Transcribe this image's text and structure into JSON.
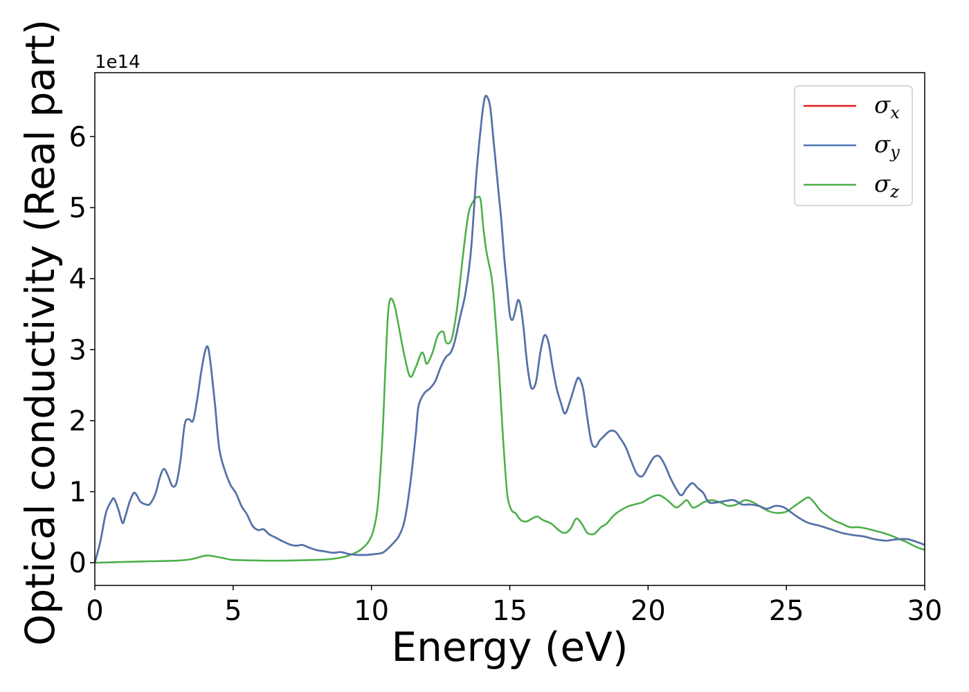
{
  "chart_data": {
    "type": "line",
    "xlabel": "Energy (eV)",
    "ylabel": "Optical conductivity (Real part)",
    "y_offset_text": "1e14",
    "xlim": [
      0,
      30
    ],
    "ylim": [
      -0.32,
      6.9
    ],
    "x_ticks": [
      0,
      5,
      10,
      15,
      20,
      25,
      30
    ],
    "y_ticks": [
      0,
      1,
      2,
      3,
      4,
      5,
      6
    ],
    "grid": false,
    "legend_position": "top-right",
    "series": [
      {
        "name": "σx",
        "base": "σ",
        "sub": "x",
        "color": "#e41a1c",
        "x": [
          0,
          0.2,
          0.4,
          0.6,
          0.7,
          0.85,
          1,
          1.1,
          1.25,
          1.4,
          1.5,
          1.65,
          1.85,
          2,
          2.2,
          2.35,
          2.5,
          2.65,
          2.8,
          2.95,
          3.1,
          3.25,
          3.4,
          3.55,
          3.7,
          3.85,
          4,
          4.1,
          4.2,
          4.35,
          4.5,
          4.7,
          4.9,
          5.1,
          5.3,
          5.5,
          5.7,
          5.9,
          6.1,
          6.3,
          6.5,
          6.8,
          7.1,
          7.3,
          7.5,
          7.7,
          8,
          8.3,
          8.6,
          8.9,
          9.2,
          9.5,
          9.8,
          10.1,
          10.4,
          10.6,
          10.8,
          11,
          11.2,
          11.4,
          11.6,
          11.7,
          11.9,
          12.1,
          12.3,
          12.5,
          12.7,
          12.85,
          13,
          13.2,
          13.4,
          13.6,
          13.8,
          14,
          14.1,
          14.2,
          14.3,
          14.4,
          14.5,
          14.6,
          14.7,
          14.8,
          14.9,
          15,
          15.1,
          15.2,
          15.3,
          15.4,
          15.5,
          15.6,
          15.7,
          15.8,
          15.95,
          16.1,
          16.25,
          16.4,
          16.55,
          16.7,
          16.85,
          17,
          17.2,
          17.4,
          17.5,
          17.65,
          17.8,
          17.95,
          18.1,
          18.25,
          18.4,
          18.6,
          18.8,
          19,
          19.2,
          19.4,
          19.6,
          19.8,
          20,
          20.2,
          20.4,
          20.6,
          20.8,
          21,
          21.2,
          21.4,
          21.6,
          21.8,
          22,
          22.2,
          22.5,
          22.8,
          23.1,
          23.4,
          23.7,
          24,
          24.3,
          24.6,
          24.9,
          25.2,
          25.5,
          25.8,
          26.2,
          26.6,
          27,
          27.4,
          27.8,
          28.2,
          28.6,
          29,
          29.4,
          29.8,
          30
        ],
        "y": [
          0,
          0.3,
          0.7,
          0.87,
          0.9,
          0.75,
          0.56,
          0.65,
          0.85,
          0.98,
          0.96,
          0.86,
          0.82,
          0.83,
          0.98,
          1.2,
          1.32,
          1.22,
          1.08,
          1.12,
          1.45,
          1.95,
          2.02,
          2.0,
          2.3,
          2.7,
          3.0,
          3.02,
          2.75,
          2.2,
          1.6,
          1.3,
          1.1,
          0.98,
          0.8,
          0.68,
          0.52,
          0.46,
          0.47,
          0.4,
          0.36,
          0.3,
          0.25,
          0.24,
          0.25,
          0.22,
          0.18,
          0.16,
          0.14,
          0.15,
          0.12,
          0.11,
          0.11,
          0.12,
          0.14,
          0.2,
          0.28,
          0.38,
          0.6,
          1.1,
          1.8,
          2.2,
          2.38,
          2.45,
          2.55,
          2.75,
          2.9,
          2.95,
          3.1,
          3.45,
          3.8,
          4.4,
          5.5,
          6.3,
          6.55,
          6.55,
          6.4,
          6.0,
          5.6,
          5.2,
          4.8,
          4.3,
          3.9,
          3.5,
          3.42,
          3.55,
          3.7,
          3.6,
          3.3,
          2.9,
          2.6,
          2.45,
          2.55,
          2.95,
          3.2,
          3.1,
          2.75,
          2.45,
          2.25,
          2.1,
          2.3,
          2.55,
          2.6,
          2.45,
          2.05,
          1.7,
          1.63,
          1.72,
          1.78,
          1.85,
          1.85,
          1.75,
          1.62,
          1.42,
          1.25,
          1.22,
          1.35,
          1.48,
          1.5,
          1.38,
          1.2,
          1.05,
          0.95,
          1.05,
          1.12,
          1.05,
          0.98,
          0.85,
          0.85,
          0.87,
          0.88,
          0.82,
          0.82,
          0.8,
          0.76,
          0.8,
          0.78,
          0.7,
          0.62,
          0.56,
          0.52,
          0.47,
          0.42,
          0.39,
          0.37,
          0.33,
          0.31,
          0.33,
          0.33,
          0.28,
          0.25
        ]
      },
      {
        "name": "σy",
        "base": "σ",
        "sub": "y",
        "color": "#4b76ae",
        "x": [
          0,
          0.2,
          0.4,
          0.6,
          0.7,
          0.85,
          1,
          1.1,
          1.25,
          1.4,
          1.5,
          1.65,
          1.85,
          2,
          2.2,
          2.35,
          2.5,
          2.65,
          2.8,
          2.95,
          3.1,
          3.25,
          3.4,
          3.55,
          3.7,
          3.85,
          4,
          4.1,
          4.2,
          4.35,
          4.5,
          4.7,
          4.9,
          5.1,
          5.3,
          5.5,
          5.7,
          5.9,
          6.1,
          6.3,
          6.5,
          6.8,
          7.1,
          7.3,
          7.5,
          7.7,
          8,
          8.3,
          8.6,
          8.9,
          9.2,
          9.5,
          9.8,
          10.1,
          10.4,
          10.6,
          10.8,
          11,
          11.2,
          11.4,
          11.6,
          11.7,
          11.9,
          12.1,
          12.3,
          12.5,
          12.7,
          12.85,
          13,
          13.2,
          13.4,
          13.6,
          13.8,
          14,
          14.1,
          14.2,
          14.3,
          14.4,
          14.5,
          14.6,
          14.7,
          14.8,
          14.9,
          15,
          15.1,
          15.2,
          15.3,
          15.4,
          15.5,
          15.6,
          15.7,
          15.8,
          15.95,
          16.1,
          16.25,
          16.4,
          16.55,
          16.7,
          16.85,
          17,
          17.2,
          17.4,
          17.5,
          17.65,
          17.8,
          17.95,
          18.1,
          18.25,
          18.4,
          18.6,
          18.8,
          19,
          19.2,
          19.4,
          19.6,
          19.8,
          20,
          20.2,
          20.4,
          20.6,
          20.8,
          21,
          21.2,
          21.4,
          21.6,
          21.8,
          22,
          22.2,
          22.5,
          22.8,
          23.1,
          23.4,
          23.7,
          24,
          24.3,
          24.6,
          24.9,
          25.2,
          25.5,
          25.8,
          26.2,
          26.6,
          27,
          27.4,
          27.8,
          28.2,
          28.6,
          29,
          29.4,
          29.8,
          30
        ],
        "y": [
          0,
          0.3,
          0.7,
          0.87,
          0.9,
          0.75,
          0.56,
          0.65,
          0.85,
          0.98,
          0.96,
          0.86,
          0.82,
          0.83,
          0.98,
          1.2,
          1.32,
          1.22,
          1.08,
          1.12,
          1.45,
          1.95,
          2.02,
          2.0,
          2.3,
          2.7,
          3.0,
          3.02,
          2.75,
          2.2,
          1.6,
          1.3,
          1.1,
          0.98,
          0.8,
          0.68,
          0.52,
          0.46,
          0.47,
          0.4,
          0.36,
          0.3,
          0.25,
          0.24,
          0.25,
          0.22,
          0.18,
          0.16,
          0.14,
          0.15,
          0.12,
          0.11,
          0.11,
          0.12,
          0.14,
          0.2,
          0.28,
          0.38,
          0.6,
          1.1,
          1.8,
          2.2,
          2.38,
          2.45,
          2.55,
          2.75,
          2.9,
          2.95,
          3.1,
          3.45,
          3.8,
          4.4,
          5.5,
          6.3,
          6.55,
          6.55,
          6.4,
          6.0,
          5.6,
          5.2,
          4.8,
          4.3,
          3.9,
          3.5,
          3.42,
          3.55,
          3.7,
          3.6,
          3.3,
          2.9,
          2.6,
          2.45,
          2.55,
          2.95,
          3.2,
          3.1,
          2.75,
          2.45,
          2.25,
          2.1,
          2.3,
          2.55,
          2.6,
          2.45,
          2.05,
          1.7,
          1.63,
          1.72,
          1.78,
          1.85,
          1.85,
          1.75,
          1.62,
          1.42,
          1.25,
          1.22,
          1.35,
          1.48,
          1.5,
          1.38,
          1.2,
          1.05,
          0.95,
          1.05,
          1.12,
          1.05,
          0.98,
          0.85,
          0.85,
          0.87,
          0.88,
          0.82,
          0.82,
          0.8,
          0.76,
          0.8,
          0.78,
          0.7,
          0.62,
          0.56,
          0.52,
          0.47,
          0.42,
          0.39,
          0.37,
          0.33,
          0.31,
          0.33,
          0.33,
          0.28,
          0.25
        ]
      },
      {
        "name": "σz",
        "base": "σ",
        "sub": "z",
        "color": "#4daf4a",
        "x": [
          0,
          1,
          2,
          3,
          3.5,
          4,
          4.3,
          4.7,
          5,
          6,
          7,
          8,
          8.5,
          9,
          9.3,
          9.6,
          9.9,
          10.1,
          10.25,
          10.4,
          10.5,
          10.6,
          10.7,
          10.85,
          11,
          11.2,
          11.4,
          11.6,
          11.8,
          11.9,
          12,
          12.2,
          12.4,
          12.6,
          12.7,
          12.9,
          13.1,
          13.3,
          13.5,
          13.7,
          13.85,
          13.95,
          14.05,
          14.15,
          14.25,
          14.35,
          14.45,
          14.6,
          14.75,
          14.9,
          15,
          15.1,
          15.2,
          15.4,
          15.6,
          15.8,
          16,
          16.2,
          16.5,
          16.8,
          17,
          17.2,
          17.4,
          17.6,
          17.8,
          18,
          18.1,
          18.3,
          18.5,
          18.8,
          19.2,
          19.5,
          19.8,
          20.1,
          20.4,
          20.7,
          21,
          21.2,
          21.4,
          21.6,
          21.8,
          22,
          22.3,
          22.6,
          22.9,
          23.2,
          23.5,
          23.8,
          24.1,
          24.4,
          24.7,
          25,
          25.3,
          25.6,
          25.8,
          26,
          26.2,
          26.4,
          26.7,
          27,
          27.3,
          27.6,
          27.9,
          28.2,
          28.5,
          28.8,
          29.1,
          29.4,
          29.7,
          30
        ],
        "y": [
          0,
          0.01,
          0.02,
          0.03,
          0.05,
          0.1,
          0.09,
          0.06,
          0.04,
          0.03,
          0.03,
          0.04,
          0.05,
          0.08,
          0.12,
          0.18,
          0.3,
          0.5,
          0.9,
          1.8,
          2.7,
          3.5,
          3.72,
          3.6,
          3.3,
          2.9,
          2.62,
          2.75,
          2.95,
          2.92,
          2.8,
          2.95,
          3.2,
          3.25,
          3.1,
          3.15,
          3.6,
          4.3,
          4.9,
          5.1,
          5.15,
          5.1,
          4.7,
          4.4,
          4.2,
          4.0,
          3.6,
          2.8,
          1.8,
          1.0,
          0.8,
          0.72,
          0.7,
          0.6,
          0.58,
          0.62,
          0.65,
          0.6,
          0.55,
          0.45,
          0.42,
          0.48,
          0.62,
          0.55,
          0.42,
          0.4,
          0.42,
          0.5,
          0.55,
          0.68,
          0.78,
          0.82,
          0.85,
          0.92,
          0.95,
          0.88,
          0.78,
          0.82,
          0.88,
          0.78,
          0.8,
          0.85,
          0.88,
          0.85,
          0.8,
          0.82,
          0.88,
          0.85,
          0.78,
          0.72,
          0.7,
          0.72,
          0.8,
          0.88,
          0.92,
          0.85,
          0.75,
          0.68,
          0.6,
          0.55,
          0.5,
          0.5,
          0.48,
          0.45,
          0.42,
          0.38,
          0.33,
          0.28,
          0.22,
          0.18
        ]
      }
    ]
  }
}
